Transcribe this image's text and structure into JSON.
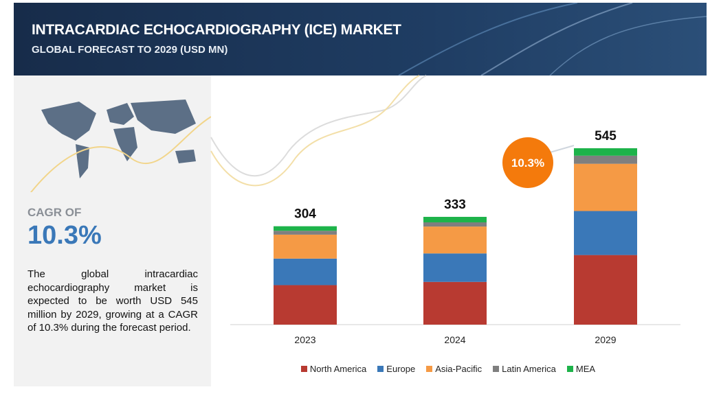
{
  "header": {
    "title": "INTRACARDIAC ECHOCARDIOGRAPHY (ICE) MARKET",
    "subtitle": "GLOBAL FORECAST TO 2029 (USD MN)"
  },
  "panel": {
    "cagr_caption": "CAGR OF",
    "cagr_value": "10.3%",
    "description": "The global intracardiac echocardiography market is expected to be worth USD 545 million by 2029, growing at a CAGR of 10.3% during the forecast period."
  },
  "chart_data": {
    "type": "stacked-bar",
    "categories": [
      "2023",
      "2024",
      "2029"
    ],
    "series": [
      {
        "name": "North America",
        "color": "#b83a31",
        "values": [
          122,
          132,
          215
        ]
      },
      {
        "name": "Europe",
        "color": "#3a78b8",
        "values": [
          82,
          88,
          136
        ]
      },
      {
        "name": "Asia-Pacific",
        "color": "#f59a45",
        "values": [
          74,
          83,
          146
        ]
      },
      {
        "name": "Latin America",
        "color": "#7f7f7f",
        "values": [
          12,
          13,
          25
        ]
      },
      {
        "name": "MEA",
        "color": "#1db34a",
        "values": [
          14,
          17,
          23
        ]
      }
    ],
    "totals": [
      304,
      333,
      545
    ],
    "annotation": "10.3%"
  }
}
